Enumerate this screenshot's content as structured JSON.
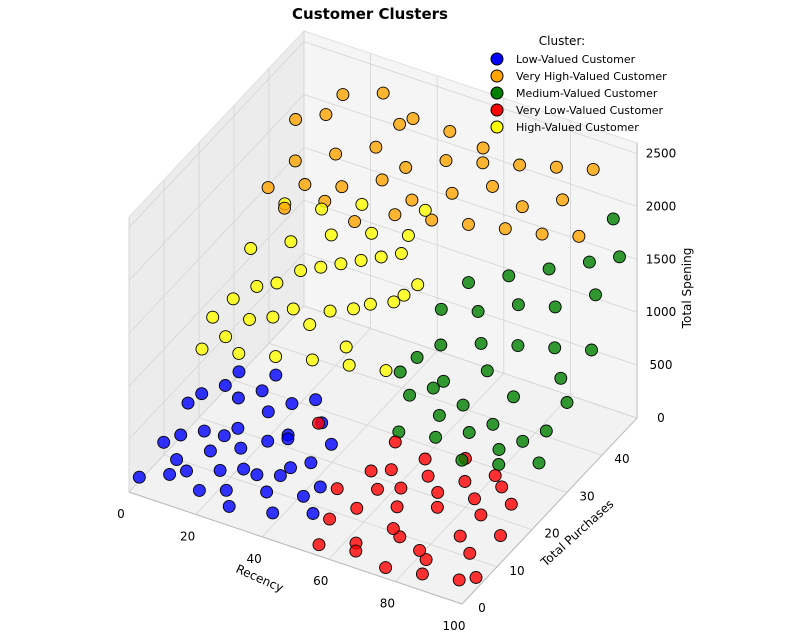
{
  "chart_data": {
    "type": "scatter",
    "title": "Customer Clusters",
    "xlabel": "Recency",
    "ylabel": "Total Purchases",
    "zlabel": "Total Spening",
    "xlim": [
      0,
      100
    ],
    "ylim": [
      0,
      50
    ],
    "zlim": [
      0,
      2600
    ],
    "x_ticks": [
      0,
      20,
      40,
      60,
      80,
      100
    ],
    "y_ticks": [
      0,
      10,
      20,
      30,
      40
    ],
    "z_ticks": [
      0,
      500,
      1000,
      1500,
      2000,
      2500
    ],
    "legend": {
      "title": "Cluster:",
      "placement": "top-right",
      "entries": [
        {
          "label": "Low-Valued Customer",
          "color": "#0000ff"
        },
        {
          "label": "Very High-Valued Customer",
          "color": "#ffa500"
        },
        {
          "label": "Medium-Valued Customer",
          "color": "#008000"
        },
        {
          "label": "Very Low-Valued Customer",
          "color": "#ff0000"
        },
        {
          "label": "High-Valued Customer",
          "color": "#ffff00"
        }
      ]
    },
    "series": [
      {
        "name": "Low-Valued Customer",
        "color": "#0000ff",
        "points": [
          [
            2,
            8,
            210
          ],
          [
            5,
            10,
            240
          ],
          [
            8,
            6,
            180
          ],
          [
            10,
            12,
            260
          ],
          [
            12,
            5,
            150
          ],
          [
            15,
            9,
            230
          ],
          [
            18,
            14,
            300
          ],
          [
            20,
            7,
            170
          ],
          [
            22,
            11,
            260
          ],
          [
            25,
            4,
            140
          ],
          [
            28,
            13,
            320
          ],
          [
            30,
            8,
            200
          ],
          [
            32,
            15,
            350
          ],
          [
            35,
            6,
            160
          ],
          [
            38,
            10,
            280
          ],
          [
            40,
            3,
            120
          ],
          [
            42,
            12,
            300
          ],
          [
            45,
            7,
            190
          ],
          [
            48,
            9,
            240
          ],
          [
            50,
            5,
            150
          ],
          [
            5,
            16,
            420
          ],
          [
            10,
            18,
            480
          ],
          [
            15,
            17,
            450
          ],
          [
            20,
            19,
            500
          ],
          [
            25,
            16,
            460
          ],
          [
            30,
            18,
            520
          ],
          [
            35,
            20,
            540
          ],
          [
            40,
            17,
            480
          ],
          [
            8,
            4,
            110
          ],
          [
            18,
            3,
            100
          ],
          [
            28,
            2,
            90
          ],
          [
            12,
            20,
            560
          ],
          [
            22,
            21,
            600
          ],
          [
            3,
            14,
            380
          ],
          [
            33,
            14,
            360
          ],
          [
            45,
            15,
            400
          ],
          [
            1,
            2,
            80
          ],
          [
            16,
            12,
            280
          ],
          [
            26,
            8,
            210
          ],
          [
            36,
            9,
            220
          ]
        ]
      },
      {
        "name": "Very High-Valued Customer",
        "color": "#ffa500",
        "points": [
          [
            5,
            35,
            1700
          ],
          [
            10,
            38,
            1900
          ],
          [
            15,
            36,
            1800
          ],
          [
            20,
            40,
            2000
          ],
          [
            25,
            37,
            1850
          ],
          [
            30,
            42,
            2100
          ],
          [
            35,
            39,
            1950
          ],
          [
            40,
            41,
            2050
          ],
          [
            45,
            38,
            1900
          ],
          [
            50,
            43,
            2150
          ],
          [
            55,
            40,
            2000
          ],
          [
            60,
            44,
            2200
          ],
          [
            65,
            42,
            2100
          ],
          [
            70,
            45,
            2250
          ],
          [
            75,
            41,
            2050
          ],
          [
            80,
            46,
            2300
          ],
          [
            85,
            43,
            2150
          ],
          [
            90,
            47,
            2350
          ],
          [
            8,
            40,
            2200
          ],
          [
            18,
            44,
            2400
          ],
          [
            28,
            46,
            2450
          ],
          [
            38,
            45,
            2350
          ],
          [
            48,
            46,
            2300
          ],
          [
            12,
            33,
            1650
          ],
          [
            22,
            35,
            1750
          ],
          [
            32,
            34,
            1700
          ],
          [
            42,
            36,
            1800
          ],
          [
            52,
            37,
            1820
          ],
          [
            62,
            38,
            1850
          ],
          [
            72,
            39,
            1880
          ],
          [
            82,
            40,
            1900
          ],
          [
            92,
            41,
            1950
          ],
          [
            15,
            42,
            2250
          ],
          [
            35,
            44,
            2300
          ],
          [
            58,
            46,
            2250
          ]
        ]
      },
      {
        "name": "Medium-Valued Customer",
        "color": "#008000",
        "points": [
          [
            55,
            30,
            800
          ],
          [
            60,
            32,
            900
          ],
          [
            65,
            28,
            750
          ],
          [
            70,
            34,
            950
          ],
          [
            75,
            31,
            850
          ],
          [
            80,
            35,
            1000
          ],
          [
            85,
            29,
            780
          ],
          [
            90,
            36,
            1050
          ],
          [
            95,
            33,
            920
          ],
          [
            100,
            37,
            1100
          ],
          [
            58,
            25,
            650
          ],
          [
            63,
            27,
            700
          ],
          [
            68,
            24,
            600
          ],
          [
            73,
            26,
            680
          ],
          [
            78,
            23,
            580
          ],
          [
            83,
            25,
            640
          ],
          [
            88,
            22,
            560
          ],
          [
            93,
            24,
            620
          ],
          [
            98,
            26,
            700
          ],
          [
            62,
            38,
            1300
          ],
          [
            72,
            40,
            1400
          ],
          [
            82,
            42,
            1500
          ],
          [
            92,
            44,
            1600
          ],
          [
            100,
            45,
            1700
          ],
          [
            57,
            35,
            1100
          ],
          [
            67,
            36,
            1150
          ],
          [
            77,
            38,
            1250
          ],
          [
            87,
            39,
            1300
          ],
          [
            97,
            41,
            1450
          ],
          [
            60,
            20,
            500
          ],
          [
            70,
            21,
            520
          ],
          [
            80,
            19,
            480
          ],
          [
            90,
            20,
            510
          ],
          [
            100,
            22,
            560
          ],
          [
            52,
            28,
            700
          ],
          [
            95,
            48,
            1900
          ],
          [
            100,
            30,
            850
          ]
        ]
      },
      {
        "name": "Very Low-Valued Customer",
        "color": "#ff0000",
        "points": [
          [
            55,
            5,
            150
          ],
          [
            60,
            8,
            200
          ],
          [
            65,
            3,
            100
          ],
          [
            70,
            10,
            250
          ],
          [
            75,
            6,
            160
          ],
          [
            80,
            12,
            280
          ],
          [
            85,
            4,
            120
          ],
          [
            90,
            9,
            220
          ],
          [
            95,
            7,
            180
          ],
          [
            100,
            11,
            260
          ],
          [
            58,
            14,
            320
          ],
          [
            63,
            15,
            350
          ],
          [
            68,
            13,
            300
          ],
          [
            73,
            16,
            360
          ],
          [
            78,
            14,
            330
          ],
          [
            83,
            17,
            380
          ],
          [
            88,
            15,
            340
          ],
          [
            93,
            18,
            400
          ],
          [
            98,
            16,
            360
          ],
          [
            56,
            1,
            60
          ],
          [
            66,
            2,
            70
          ],
          [
            76,
            1,
            55
          ],
          [
            86,
            2,
            65
          ],
          [
            96,
            3,
            80
          ],
          [
            60,
            19,
            440
          ],
          [
            70,
            18,
            420
          ],
          [
            80,
            20,
            460
          ],
          [
            90,
            19,
            440
          ],
          [
            52,
            10,
            230
          ],
          [
            62,
            12,
            260
          ],
          [
            72,
            7,
            170
          ],
          [
            82,
            5,
            140
          ],
          [
            92,
            13,
            300
          ],
          [
            100,
            4,
            110
          ],
          [
            38,
            18,
            420
          ]
        ]
      },
      {
        "name": "High-Valued Customer",
        "color": "#ffff00",
        "points": [
          [
            2,
            22,
            900
          ],
          [
            5,
            25,
            1000
          ],
          [
            8,
            20,
            850
          ],
          [
            10,
            27,
            1100
          ],
          [
            12,
            23,
            950
          ],
          [
            15,
            28,
            1150
          ],
          [
            18,
            24,
            1000
          ],
          [
            20,
            30,
            1250
          ],
          [
            22,
            26,
            1050
          ],
          [
            25,
            31,
            1300
          ],
          [
            28,
            25,
            1000
          ],
          [
            30,
            32,
            1350
          ],
          [
            32,
            27,
            1100
          ],
          [
            35,
            33,
            1400
          ],
          [
            38,
            28,
            1150
          ],
          [
            40,
            34,
            1450
          ],
          [
            42,
            29,
            1200
          ],
          [
            45,
            35,
            1500
          ],
          [
            48,
            30,
            1250
          ],
          [
            50,
            31,
            1300
          ],
          [
            52,
            33,
            1350
          ],
          [
            5,
            30,
            1300
          ],
          [
            15,
            32,
            1400
          ],
          [
            25,
            34,
            1500
          ],
          [
            35,
            36,
            1550
          ],
          [
            45,
            37,
            1600
          ],
          [
            3,
            18,
            750
          ],
          [
            13,
            19,
            780
          ],
          [
            23,
            20,
            820
          ],
          [
            33,
            21,
            860
          ],
          [
            43,
            22,
            880
          ],
          [
            53,
            23,
            900
          ],
          [
            10,
            35,
            1600
          ],
          [
            30,
            38,
            1700
          ],
          [
            40,
            24,
            950
          ],
          [
            20,
            36,
            1620
          ],
          [
            48,
            39,
            1800
          ]
        ]
      }
    ]
  }
}
